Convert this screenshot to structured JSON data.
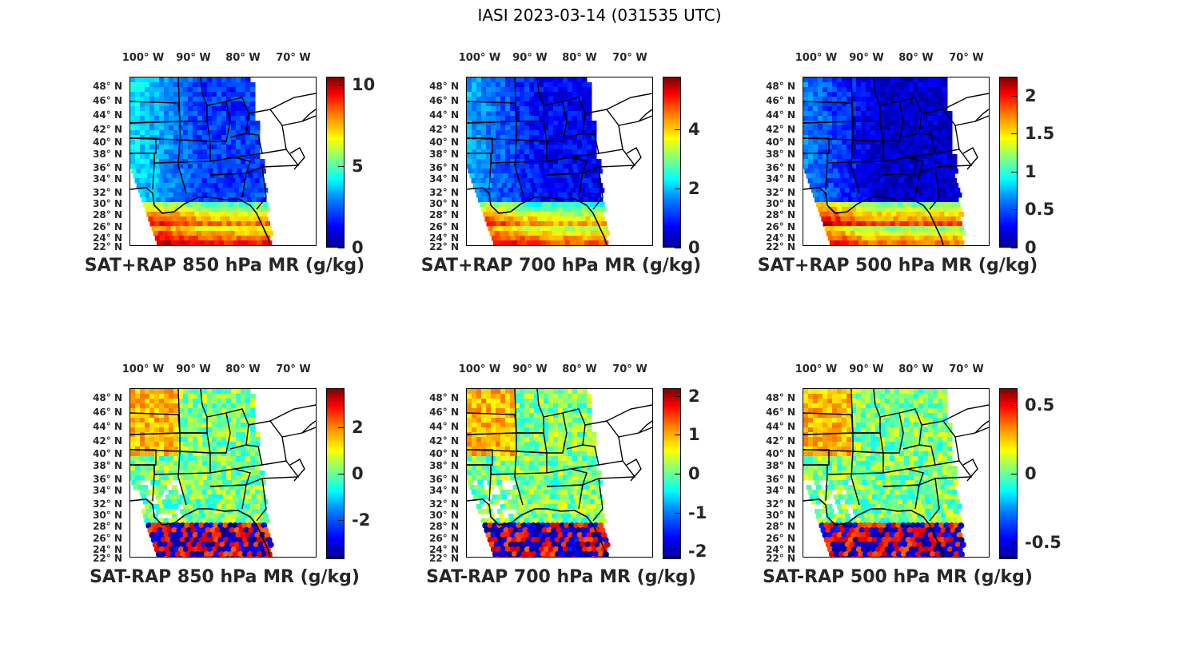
{
  "figure": {
    "title": "IASI 2023-03-14 (031535 UTC)"
  },
  "longitude_labels": [
    "100° W",
    "90° W",
    "80° W",
    "70° W"
  ],
  "latitude_labels": [
    "48° N",
    "46° N",
    "44° N",
    "42° N",
    "40° N",
    "38° N",
    "36° N",
    "34° N",
    "32° N",
    "30° N",
    "28° N",
    "26° N",
    "24° N",
    "22° N"
  ],
  "colors": {
    "map_border": "#000000",
    "text": "#262626"
  },
  "chart_data": [
    {
      "type": "heatmap",
      "title": "SAT+RAP 850 hPa MR (g/kg)",
      "colorbar": {
        "min": 0,
        "max": 10.5,
        "ticks": [
          "10",
          "5",
          "0"
        ],
        "tick_values": [
          10,
          5,
          0
        ]
      },
      "field": "sum"
    },
    {
      "type": "heatmap",
      "title": "SAT+RAP 700 hPa MR (g/kg)",
      "colorbar": {
        "min": 0,
        "max": 5.8,
        "ticks": [
          "4",
          "2",
          "0"
        ],
        "tick_values": [
          4,
          2,
          0
        ]
      },
      "field": "sum"
    },
    {
      "type": "heatmap",
      "title": "SAT+RAP 500 hPa MR (g/kg)",
      "colorbar": {
        "min": 0,
        "max": 2.25,
        "ticks": [
          "2",
          "1.5",
          "1",
          "0.5",
          "0"
        ],
        "tick_values": [
          2,
          1.5,
          1,
          0.5,
          0
        ]
      },
      "field": "sum"
    },
    {
      "type": "heatmap",
      "title": "SAT-RAP 850 hPa MR (g/kg)",
      "colorbar": {
        "min": -3.7,
        "max": 3.7,
        "ticks": [
          "2",
          "0",
          "-2"
        ],
        "tick_values": [
          2,
          0,
          -2
        ]
      },
      "field": "diff"
    },
    {
      "type": "heatmap",
      "title": "SAT-RAP 700 hPa MR (g/kg)",
      "colorbar": {
        "min": -2.2,
        "max": 2.2,
        "ticks": [
          "2",
          "1",
          "0",
          "-1",
          "-2"
        ],
        "tick_values": [
          2,
          1,
          0,
          -1,
          -2
        ]
      },
      "field": "diff"
    },
    {
      "type": "heatmap",
      "title": "SAT-RAP 500 hPa MR (g/kg)",
      "colorbar": {
        "min": -0.62,
        "max": 0.62,
        "ticks": [
          "0.5",
          "0",
          "-0.5"
        ],
        "tick_values": [
          0.5,
          0,
          -0.5
        ]
      },
      "field": "diff"
    }
  ]
}
